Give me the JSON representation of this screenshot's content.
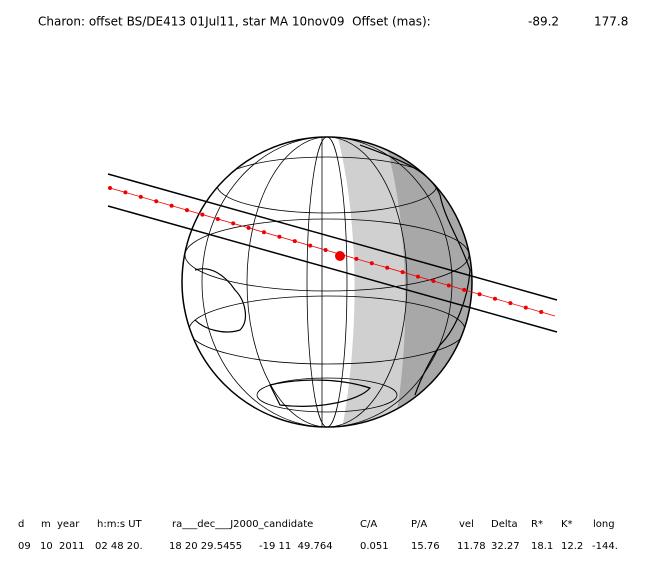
{
  "header": {
    "title": "Charon: offset BS/DE413 01Jul11, star MA 10nov09  Offset (mas):",
    "offset": [
      "-89.2",
      "177.8"
    ]
  },
  "table": {
    "columns": [
      "d",
      "m",
      "year",
      "h:m:s UT",
      "ra___dec___J2000_candidate",
      "C/A",
      "P/A",
      "vel",
      "Delta",
      "R*",
      "K*",
      "long"
    ],
    "rows": [
      [
        "09",
        "10",
        "2011",
        "02 48 20.",
        "18 20 29.5455",
        "-19 11  49.764",
        "0.051",
        "15.76",
        "11.78",
        "32.27",
        "18.1",
        "12.2",
        "-144."
      ]
    ]
  }
}
